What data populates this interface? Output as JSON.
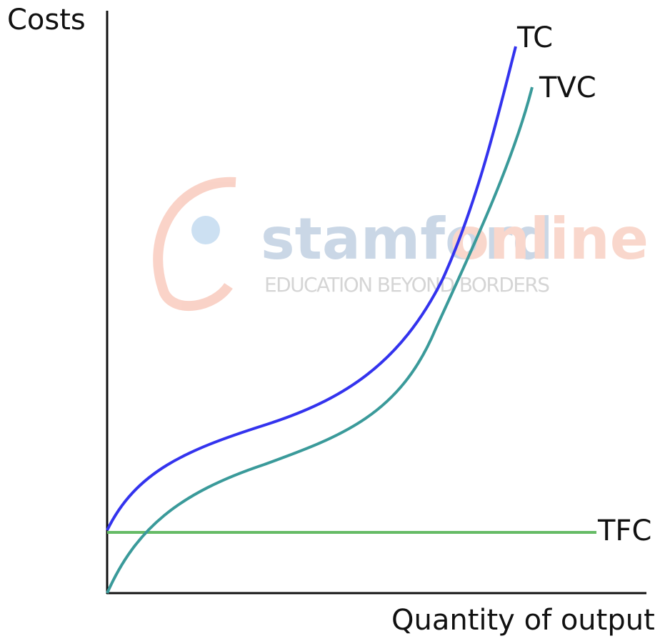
{
  "diagram": {
    "y_axis_label": "Costs",
    "x_axis_label": "Quantity of output",
    "curves": [
      {
        "label": "TC"
      },
      {
        "label": "TVC"
      },
      {
        "label": "TFC"
      }
    ],
    "watermark": {
      "brand_left": "stamford",
      "brand_right": "online",
      "tagline": "EDUCATION BEYOND BORDERS"
    }
  }
}
